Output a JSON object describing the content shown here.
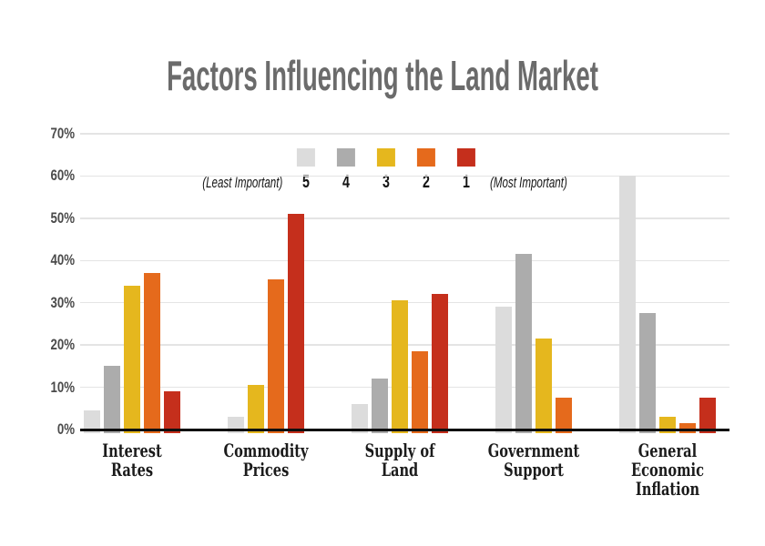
{
  "title": "Factors Influencing the Land Market",
  "legend": {
    "least_label": "(Least Important)",
    "most_label": "(Most Important)",
    "items": [
      {
        "rank": "5",
        "color": "#dcdcdc"
      },
      {
        "rank": "4",
        "color": "#acacac"
      },
      {
        "rank": "3",
        "color": "#e5b71e"
      },
      {
        "rank": "2",
        "color": "#e56a1c"
      },
      {
        "rank": "1",
        "color": "#c52f1c"
      }
    ]
  },
  "chart_data": {
    "type": "bar",
    "title": "Factors Influencing the Land Market",
    "categories": [
      "Interest Rates",
      "Commodity Prices",
      "Supply of Land",
      "Government Support",
      "General Economic Inflation"
    ],
    "category_label_lines": [
      [
        "Interest",
        "Rates"
      ],
      [
        "Commodity",
        "Prices"
      ],
      [
        "Supply of",
        "Land"
      ],
      [
        "Government",
        "Support"
      ],
      [
        "General",
        "Economic",
        "Inflation"
      ]
    ],
    "series": [
      {
        "name": "5",
        "legend": "5 (Least Important)",
        "color": "#dcdcdc",
        "values": [
          4.5,
          3,
          6,
          29,
          60
        ]
      },
      {
        "name": "4",
        "legend": "4",
        "color": "#acacac",
        "values": [
          15,
          0,
          12,
          41.5,
          27.5
        ]
      },
      {
        "name": "3",
        "legend": "3",
        "color": "#e5b71e",
        "values": [
          34,
          10.5,
          30.5,
          21.5,
          3
        ]
      },
      {
        "name": "2",
        "legend": "2",
        "color": "#e56a1c",
        "values": [
          37,
          35.5,
          18.5,
          7.5,
          1.5
        ]
      },
      {
        "name": "1",
        "legend": "1 (Most Important)",
        "color": "#c52f1c",
        "values": [
          9,
          51,
          32,
          0,
          7.5
        ]
      }
    ],
    "xlabel": "",
    "ylabel": "",
    "y_ticks": [
      "0%",
      "10%",
      "20%",
      "30%",
      "40%",
      "50%",
      "60%",
      "70%"
    ],
    "ylim": [
      0,
      70
    ],
    "grid": true,
    "legend_position": "top-center",
    "zero_values_omitted": true,
    "colors": {
      "background": "#ffffff",
      "gridline": "#e4e4e4",
      "axis": "#0e0e0e",
      "title_text": "#6b6b6b",
      "ytick_text": "#4b4b4b",
      "category_text": "#1b1b1b"
    }
  }
}
